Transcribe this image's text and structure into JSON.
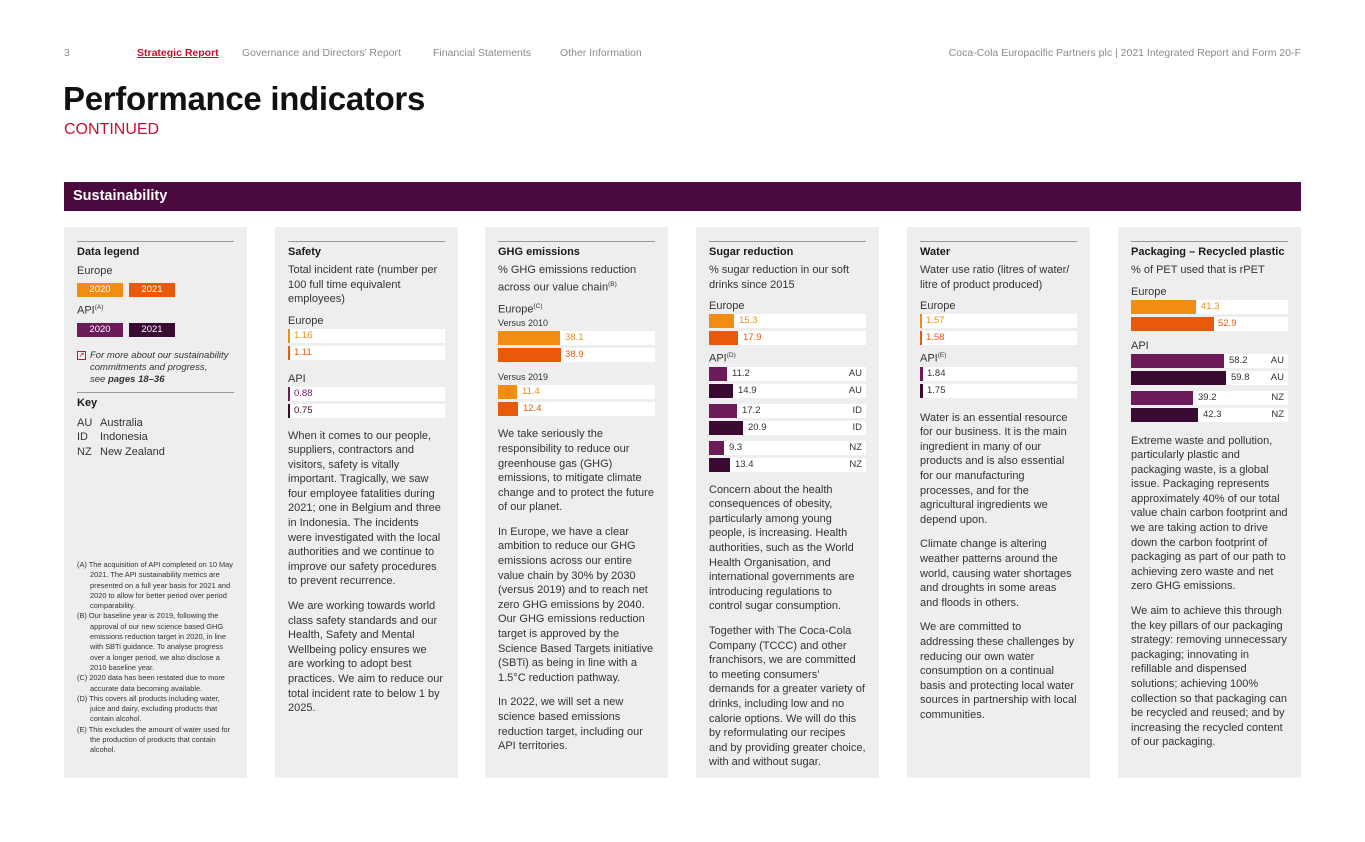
{
  "nav": {
    "page_number": "3",
    "items": [
      "Strategic Report",
      "Governance and Directors’ Report",
      "Financial Statements",
      "Other Information"
    ],
    "report_title": "Coca-Cola Europacific Partners plc | 2021 Integrated Report and Form 20-F"
  },
  "title": "Performance indicators",
  "subtitle": "CONTINUED",
  "section": "Sustainability",
  "colors": {
    "europe_2020": "#f28c12",
    "europe_2021": "#e8590c",
    "api_2020": "#6b1a5a",
    "api_2021": "#3b0a33",
    "banner": "#4a0a3e",
    "accent": "#c8102e"
  },
  "legend": {
    "heading": "Data legend",
    "europe": "Europe",
    "api": "API",
    "api_sup": "(A)",
    "y2020": "2020",
    "y2021": "2021",
    "more_line1": "For more about our sustainability",
    "more_line2": "commitments and progress,",
    "more_line3": "see ",
    "more_pages": "pages 18–36",
    "more_icon": "page-link-icon",
    "key_heading": "Key",
    "key": [
      {
        "code": "AU",
        "name": "Australia"
      },
      {
        "code": "ID",
        "name": "Indonesia"
      },
      {
        "code": "NZ",
        "name": "New Zealand"
      }
    ],
    "notes": [
      "(A) The acquisition of API completed on 10 May 2021. The API sustainability metrics are presented on a full year basis for 2021 and 2020 to allow for better period over period comparability.",
      "(B) Our baseline year is 2019, following the approval of our new science based GHG emissions reduction target in 2020, in line with SBTi guidance. To analyse progress over a longer period, we also disclose a 2010 baseline year.",
      "(C) 2020 data has been restated due to more accurate data becoming available.",
      "(D) This covers all products including water, juice and dairy, excluding products that contain alcohol.",
      "(E) This excludes the amount of water used for the production of products that contain alcohol."
    ]
  },
  "safety": {
    "heading": "Safety",
    "subtitle": "Total incident rate (number per 100 full time equivalent employees)",
    "europe": "Europe",
    "api": "API",
    "europe_values": [
      "1.16",
      "1.11"
    ],
    "api_values": [
      "0.88",
      "0.75"
    ],
    "body": [
      "When it comes to our people, suppliers, contractors and visitors, safety is vitally important. Tragically, we saw four employee fatalities during 2021; one in Belgium and three in Indonesia. The incidents were investigated with the local authorities and we continue to improve our safety procedures to prevent recurrence.",
      "We are working towards world class safety standards and our Health, Safety and Mental Wellbeing policy ensures we are working to adopt best practices. We aim to reduce our total incident rate to below 1 by 2025."
    ]
  },
  "ghg": {
    "heading": "GHG emissions",
    "subtitle": "% GHG emissions reduction across our value chain",
    "subtitle_sup": "(B)",
    "europe": "Europe",
    "europe_sup": "(C)",
    "versus_2010": "Versus 2010",
    "versus_2019": "Versus 2019",
    "v2010_values": [
      "38.1",
      "38.9"
    ],
    "v2019_values": [
      "11.4",
      "12.4"
    ],
    "body": [
      "We take seriously the responsibility to reduce our greenhouse gas (GHG) emissions, to mitigate climate change and to protect the future of our planet.",
      "In Europe, we have a clear ambition to reduce our GHG emissions across our entire value chain by 30% by 2030 (versus 2019) and to reach net zero GHG emissions by 2040. Our GHG emissions reduction target is approved by the Science Based Targets initiative (SBTi) as being in line with a 1.5°C reduction pathway.",
      "In 2022, we will set a new science based emissions reduction target, including our API territories."
    ]
  },
  "sugar": {
    "heading": "Sugar reduction",
    "subtitle": "% sugar reduction in our soft drinks since 2015",
    "europe": "Europe",
    "api": "API",
    "api_sup": "(D)",
    "europe_values": [
      "15.3",
      "17.9"
    ],
    "api_rows": [
      {
        "value": "11.2",
        "tag": "AU"
      },
      {
        "value": "14.9",
        "tag": "AU"
      },
      {
        "value": "17.2",
        "tag": "ID"
      },
      {
        "value": "20.9",
        "tag": "ID"
      },
      {
        "value": "9.3",
        "tag": "NZ"
      },
      {
        "value": "13.4",
        "tag": "NZ"
      }
    ],
    "body": [
      "Concern about the health consequences of obesity, particularly among young people, is increasing. Health authorities, such as the World Health Organisation, and international governments are introducing regulations to control sugar consumption.",
      "Together with The Coca-Cola Company (TCCC) and other franchisors, we are committed to meeting consumers’ demands for a greater variety of drinks, including low and no calorie options. We will do this by reformulating our recipes and by providing greater choice, with and without sugar."
    ]
  },
  "water": {
    "heading": "Water",
    "subtitle": "Water use ratio (litres of water/ litre of product produced)",
    "europe": "Europe",
    "api": "API",
    "api_sup": "(E)",
    "europe_values": [
      "1.57",
      "1.58"
    ],
    "api_values": [
      "1.84",
      "1.75"
    ],
    "body": [
      "Water is an essential resource for our business. It is the main ingredient in many of our products and is also essential for our manufacturing processes, and for the agricultural ingredients we depend upon.",
      "Climate change is altering weather patterns around the world, causing water shortages and droughts in some areas and floods in others.",
      "We are committed to addressing these challenges by reducing our own water consumption on a continual basis and protecting local water sources in partnership with local communities."
    ]
  },
  "packaging": {
    "heading": "Packaging – Recycled plastic",
    "subtitle": "% of PET used that is rPET",
    "europe": "Europe",
    "api": "API",
    "europe_values": [
      "41.3",
      "52.9"
    ],
    "api_rows": [
      {
        "value": "58.2",
        "tag": "AU"
      },
      {
        "value": "59.8",
        "tag": "AU"
      },
      {
        "value": "39.2",
        "tag": "NZ"
      },
      {
        "value": "42.3",
        "tag": "NZ"
      }
    ],
    "body": [
      "Extreme waste and pollution, particularly plastic and packaging waste, is a global issue. Packaging represents approximately 40% of our total value chain carbon footprint and we are taking action to drive down the carbon footprint of packaging as part of our path to achieving zero waste and net zero GHG emissions.",
      "We aim to achieve this through the key pillars of our packaging strategy: removing unnecessary packaging; innovating in refillable and dispensed solutions; achieving 100% collection so that packaging can be recycled and reused; and by increasing the recycled content of our packaging."
    ]
  }
}
